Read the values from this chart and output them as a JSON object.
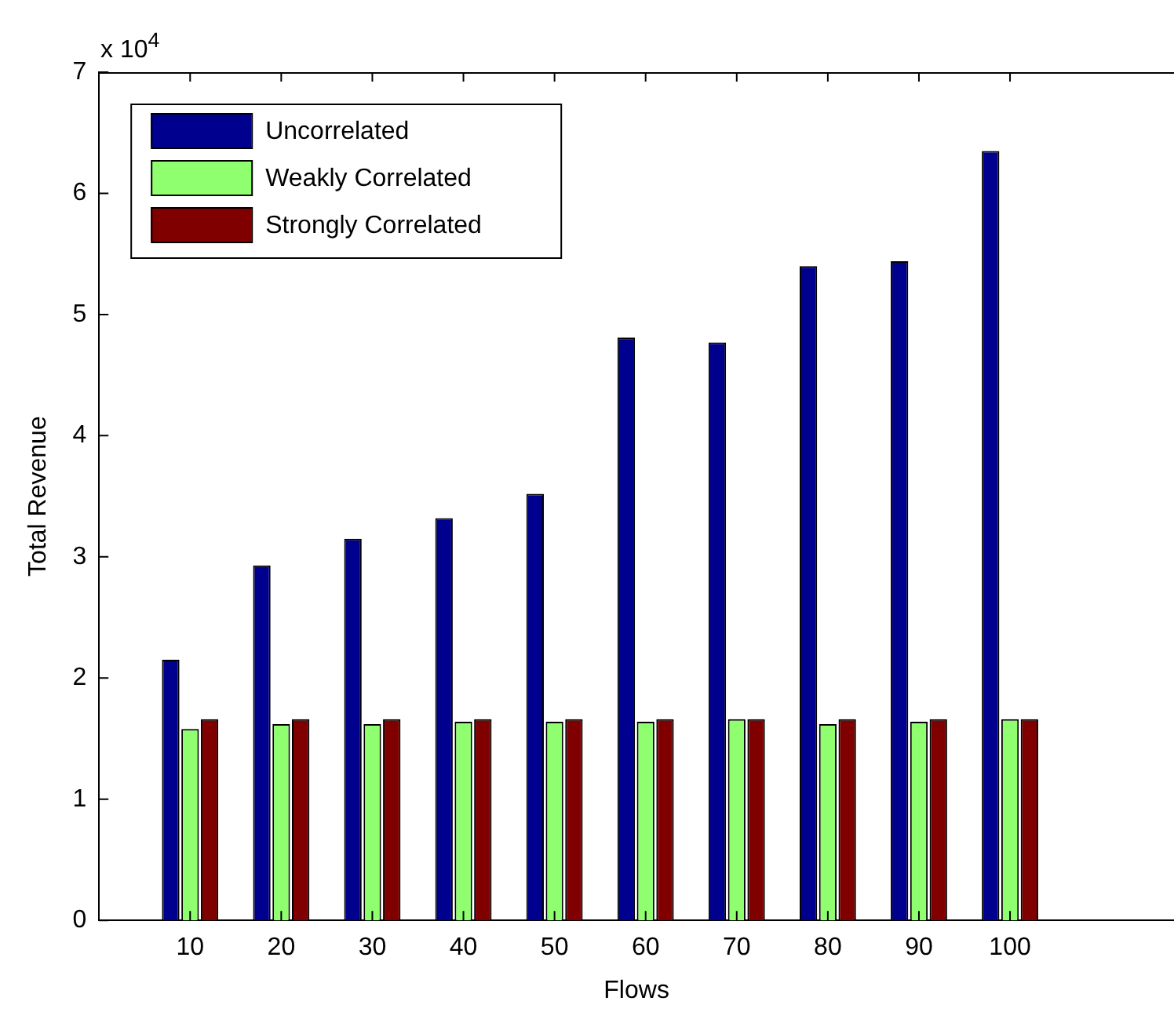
{
  "chart_data": {
    "type": "bar",
    "xlabel": "Flows",
    "ylabel": "Total Revenue",
    "x": [
      10,
      20,
      30,
      40,
      50,
      60,
      70,
      80,
      90,
      100
    ],
    "series": [
      {
        "name": "Uncorrelated",
        "color": "#00008f",
        "values": [
          2.15,
          2.93,
          3.15,
          3.32,
          3.52,
          4.81,
          4.77,
          5.4,
          5.44,
          6.35
        ]
      },
      {
        "name": "Weakly Correlated",
        "color": "#8fff6f",
        "values": [
          1.58,
          1.62,
          1.62,
          1.64,
          1.64,
          1.64,
          1.66,
          1.62,
          1.64,
          1.66
        ]
      },
      {
        "name": "Strongly Correlated",
        "color": "#800000",
        "values": [
          1.66,
          1.66,
          1.66,
          1.66,
          1.66,
          1.66,
          1.66,
          1.66,
          1.66,
          1.66
        ]
      }
    ],
    "xlim": [
      0,
      118
    ],
    "xticks": [
      10,
      20,
      30,
      40,
      50,
      60,
      70,
      80,
      90,
      100
    ],
    "ylim": [
      0,
      7
    ],
    "yticks": [
      0,
      1,
      2,
      3,
      4,
      5,
      6,
      7
    ],
    "annotations": [
      "x 10$^{4}$"
    ],
    "grid": false,
    "legend": "top left"
  }
}
